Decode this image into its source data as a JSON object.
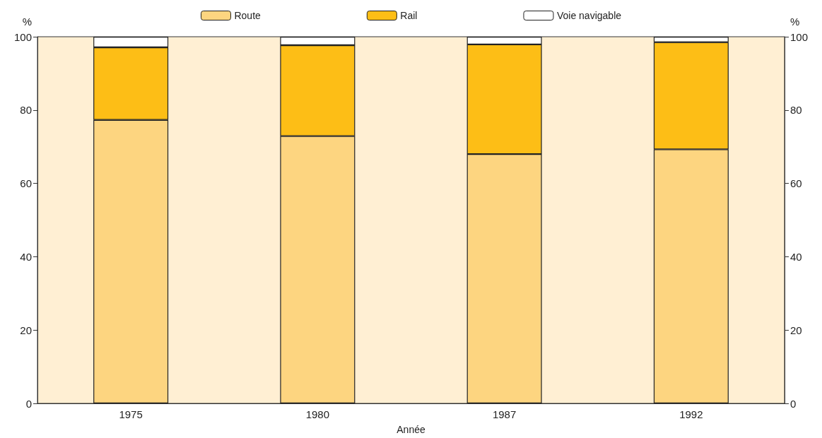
{
  "chart_data": {
    "type": "bar",
    "stacked": true,
    "categories": [
      "1975",
      "1980",
      "1987",
      "1992"
    ],
    "xlabel": "Année",
    "ylabel": "%",
    "y2label": "%",
    "series": [
      {
        "name": "Route",
        "color": "#fdd580",
        "values": [
          77.3,
          72.9,
          68.0,
          69.3
        ]
      },
      {
        "name": "Rail",
        "color": "#fdbe16",
        "values": [
          19.8,
          24.8,
          29.9,
          29.2
        ]
      },
      {
        "name": "Voie navigable",
        "color": "#ffffff",
        "values": [
          2.9,
          2.3,
          2.1,
          1.5
        ]
      }
    ],
    "ylim": [
      0,
      100
    ],
    "yticks": [
      0,
      20,
      40,
      60,
      80,
      100
    ],
    "y2lim": [
      0,
      100
    ],
    "y2ticks": [
      0,
      20,
      40,
      60,
      80,
      100
    ],
    "grid": false,
    "legend": "top"
  }
}
